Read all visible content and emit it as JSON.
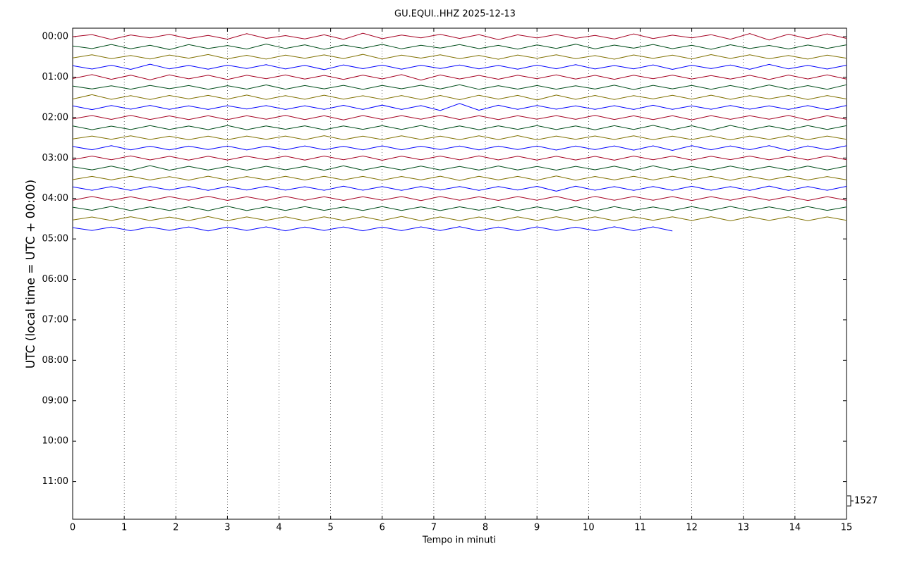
{
  "chart_data": {
    "type": "helicorder",
    "title": "GU.EQUI..HHZ 2025-12-13",
    "x_label": "Tempo in minuti",
    "y_label": "UTC (local time = UTC + 00:00)",
    "xlim": [
      0,
      15
    ],
    "xticks": [
      0,
      1,
      2,
      3,
      4,
      5,
      6,
      7,
      8,
      9,
      10,
      11,
      12,
      13,
      14,
      15
    ],
    "ylim": [
      -0.21,
      11.93
    ],
    "y_inverted": true,
    "yticks": [
      {
        "value": 0,
        "label": "00:00"
      },
      {
        "value": 1,
        "label": "01:00"
      },
      {
        "value": 2,
        "label": "02:00"
      },
      {
        "value": 3,
        "label": "03:00"
      },
      {
        "value": 4,
        "label": "04:00"
      },
      {
        "value": 5,
        "label": "05:00"
      },
      {
        "value": 6,
        "label": "06:00"
      },
      {
        "value": 7,
        "label": "07:00"
      },
      {
        "value": 8,
        "label": "08:00"
      },
      {
        "value": 9,
        "label": "09:00"
      },
      {
        "value": 10,
        "label": "10:00"
      },
      {
        "value": 11,
        "label": "11:00"
      }
    ],
    "grid": true,
    "scale_bar": 1527,
    "x": [
      0,
      0.375,
      0.75,
      1.125,
      1.5,
      1.875,
      2.25,
      2.625,
      3,
      3.375,
      3.75,
      4.125,
      4.5,
      4.875,
      5.25,
      5.625,
      6,
      6.375,
      6.75,
      7.125,
      7.5,
      7.875,
      8.25,
      8.625,
      9,
      9.375,
      9.75,
      10.125,
      10.5,
      10.875,
      11.25,
      11.625,
      12,
      12.375,
      12.75,
      13.125,
      13.5,
      13.875,
      14.25,
      14.625,
      15
    ],
    "series": [
      {
        "start": 0,
        "color": "#a50021",
        "values": [
          0,
          310,
          -420,
          260,
          -180,
          350,
          -290,
          200,
          -380,
          450,
          -260,
          170,
          -330,
          280,
          -410,
          520,
          -300,
          240,
          -190,
          360,
          -270,
          310,
          -440,
          280,
          -200,
          330,
          -250,
          190,
          -360,
          410,
          -280,
          230,
          -170,
          300,
          -390,
          460,
          -520,
          380,
          -300,
          420,
          -260
        ]
      },
      {
        "start": 0.25,
        "color": "#004d1a",
        "values": [
          120,
          -280,
          350,
          -300,
          220,
          -410,
          330,
          -260,
          190,
          -340,
          420,
          -250,
          300,
          -380,
          270,
          -220,
          360,
          -310,
          240,
          -190,
          330,
          -280,
          210,
          -350,
          290,
          -240,
          400,
          -320,
          260,
          -210,
          350,
          -290,
          230,
          -380,
          310,
          -260,
          200,
          -330,
          270,
          -240,
          300
        ]
      },
      {
        "start": 0.5,
        "color": "#807000",
        "values": [
          -150,
          330,
          -260,
          220,
          -310,
          280,
          -200,
          360,
          -290,
          240,
          -330,
          270,
          -210,
          300,
          -250,
          380,
          -310,
          260,
          -190,
          320,
          -270,
          230,
          -350,
          280,
          -220,
          310,
          -260,
          200,
          -340,
          290,
          -230,
          270,
          -300,
          350,
          -240,
          310,
          -280,
          220,
          -330,
          260,
          -200
        ]
      },
      {
        "start": 0.75,
        "color": "#0000ff",
        "values": [
          200,
          -310,
          270,
          -360,
          430,
          -290,
          240,
          -330,
          280,
          -220,
          350,
          -300,
          260,
          -390,
          320,
          -250,
          290,
          -340,
          270,
          -230,
          310,
          -280,
          240,
          -330,
          290,
          -260,
          350,
          -300,
          230,
          -280,
          320,
          -360,
          270,
          -240,
          300,
          -350,
          400,
          -290,
          250,
          -310,
          270
        ]
      },
      {
        "start": 1,
        "color": "#a50021",
        "values": [
          -220,
          380,
          -330,
          290,
          -410,
          340,
          -260,
          300,
          -370,
          280,
          -240,
          330,
          -290,
          260,
          -350,
          310,
          -270,
          380,
          -450,
          330,
          -280,
          260,
          -320,
          290,
          -240,
          350,
          -300,
          270,
          -330,
          290,
          -250,
          310,
          -280,
          240,
          -300,
          270,
          -360,
          320,
          -280,
          340,
          -300
        ]
      },
      {
        "start": 1.25,
        "color": "#004d1a",
        "values": [
          180,
          -260,
          230,
          -300,
          270,
          -220,
          260,
          -310,
          240,
          -280,
          350,
          -300,
          260,
          -240,
          290,
          -330,
          270,
          -230,
          300,
          -260,
          380,
          -320,
          240,
          -280,
          260,
          -300,
          230,
          -270,
          310,
          -350,
          290,
          -240,
          270,
          -310,
          260,
          -300,
          340,
          -280,
          250,
          -310,
          380
        ]
      },
      {
        "start": 1.5,
        "color": "#807000",
        "values": [
          -260,
          400,
          -300,
          260,
          -330,
          280,
          -240,
          300,
          -270,
          350,
          -310,
          260,
          -290,
          330,
          -280,
          240,
          -300,
          270,
          -330,
          290,
          -350,
          320,
          -280,
          300,
          -400,
          350,
          -300,
          280,
          -330,
          260,
          -240,
          310,
          -280,
          330,
          -300,
          260,
          -240,
          290,
          -320,
          270,
          -250
        ]
      },
      {
        "start": 1.75,
        "color": "#0000ff",
        "values": [
          240,
          -330,
          290,
          -260,
          310,
          -280,
          250,
          -300,
          270,
          -240,
          280,
          -310,
          260,
          -290,
          320,
          -300,
          350,
          -310,
          280,
          -450,
          600,
          -420,
          330,
          -280,
          300,
          -260,
          240,
          -290,
          270,
          -300,
          330,
          -280,
          250,
          -270,
          300,
          -260,
          240,
          -310,
          280,
          -330,
          290
        ]
      },
      {
        "start": 2,
        "color": "#a50021",
        "values": [
          -200,
          310,
          -280,
          340,
          -290,
          250,
          -300,
          270,
          -320,
          290,
          -260,
          330,
          -300,
          270,
          -350,
          310,
          -280,
          300,
          -260,
          330,
          -290,
          270,
          -310,
          280,
          -250,
          300,
          -270,
          330,
          -290,
          260,
          -310,
          280,
          -340,
          300,
          -270,
          290,
          -250,
          320,
          -360,
          290,
          -260
        ]
      },
      {
        "start": 2.25,
        "color": "#004d1a",
        "values": [
          260,
          -300,
          240,
          -280,
          310,
          -270,
          250,
          -290,
          330,
          -300,
          260,
          -240,
          280,
          -310,
          270,
          -250,
          300,
          -270,
          330,
          -290,
          260,
          -300,
          280,
          -250,
          310,
          -280,
          260,
          -330,
          300,
          -270,
          350,
          -310,
          290,
          -380,
          340,
          -300,
          270,
          -290,
          310,
          -260,
          300
        ]
      },
      {
        "start": 2.5,
        "color": "#807000",
        "values": [
          -180,
          270,
          -240,
          300,
          -260,
          230,
          -280,
          250,
          -300,
          270,
          -240,
          260,
          -290,
          320,
          -280,
          250,
          -270,
          300,
          -260,
          240,
          -280,
          310,
          -270,
          330,
          -300,
          260,
          -240,
          280,
          -260,
          300,
          -280,
          250,
          -270,
          290,
          -310,
          270,
          -250,
          300,
          -280,
          260,
          -240
        ]
      },
      {
        "start": 2.75,
        "color": "#0000ff",
        "values": [
          220,
          -280,
          330,
          -290,
          260,
          -300,
          270,
          -250,
          290,
          -310,
          260,
          -280,
          300,
          -270,
          250,
          -290,
          310,
          -280,
          260,
          -240,
          280,
          -300,
          270,
          -250,
          290,
          -320,
          280,
          -260,
          300,
          -340,
          310,
          -380,
          330,
          -280,
          300,
          -270,
          330,
          -380,
          300,
          -270,
          320
        ]
      },
      {
        "start": 3,
        "color": "#a50021",
        "values": [
          -240,
          300,
          -270,
          330,
          -290,
          260,
          -310,
          280,
          -300,
          270,
          -250,
          290,
          -320,
          300,
          -270,
          310,
          -340,
          290,
          -260,
          300,
          -280,
          330,
          -290,
          270,
          -310,
          280,
          -300,
          260,
          -330,
          300,
          -270,
          290,
          -310,
          270,
          -250,
          300,
          -280,
          260,
          -290,
          310,
          -270
        ]
      },
      {
        "start": 3.25,
        "color": "#004d1a",
        "values": [
          200,
          -260,
          300,
          -330,
          380,
          -310,
          270,
          -290,
          260,
          -300,
          280,
          -250,
          270,
          -310,
          350,
          -300,
          260,
          -280,
          300,
          -270,
          250,
          -290,
          320,
          -280,
          260,
          -300,
          270,
          -250,
          290,
          -320,
          350,
          -290,
          260,
          -280,
          300,
          -270,
          250,
          -290,
          310,
          -280,
          300
        ]
      },
      {
        "start": 3.5,
        "color": "#807000",
        "values": [
          -210,
          280,
          -250,
          300,
          -270,
          240,
          -290,
          310,
          -280,
          260,
          -240,
          290,
          -270,
          300,
          -260,
          280,
          -300,
          270,
          -250,
          310,
          -330,
          290,
          -260,
          280,
          -300,
          340,
          -300,
          270,
          -250,
          290,
          -270,
          300,
          -260,
          280,
          -310,
          270,
          -250,
          290,
          -270,
          260,
          -240
        ]
      },
      {
        "start": 3.75,
        "color": "#0000ff",
        "values": [
          230,
          -290,
          260,
          -300,
          270,
          -250,
          290,
          -310,
          280,
          -260,
          300,
          -270,
          250,
          -290,
          320,
          -280,
          260,
          -300,
          270,
          -250,
          280,
          -300,
          270,
          -260,
          300,
          -420,
          330,
          -280,
          260,
          -300,
          270,
          -290,
          310,
          -280,
          260,
          -300,
          350,
          -300,
          270,
          -290,
          300
        ]
      },
      {
        "start": 4,
        "color": "#a50021",
        "values": [
          -260,
          300,
          -280,
          260,
          -310,
          290,
          -270,
          330,
          -300,
          270,
          -290,
          310,
          -280,
          260,
          -300,
          270,
          -250,
          290,
          -320,
          300,
          -280,
          260,
          -300,
          290,
          -270,
          310,
          -360,
          320,
          -280,
          300,
          -260,
          290,
          -310,
          280,
          -260,
          300,
          -270,
          290,
          -310,
          280,
          -260
        ]
      },
      {
        "start": 4.25,
        "color": "#004d1a",
        "values": [
          210,
          -260,
          330,
          -300,
          260,
          -290,
          270,
          -310,
          350,
          -300,
          260,
          -280,
          300,
          -270,
          250,
          -290,
          310,
          -280,
          260,
          -300,
          270,
          -250,
          280,
          -300,
          260,
          -280,
          310,
          -360,
          300,
          -270,
          250,
          -280,
          300,
          -270,
          330,
          -290,
          260,
          -280,
          300,
          -270,
          250
        ]
      },
      {
        "start": 4.5,
        "color": "#807000",
        "values": [
          -190,
          260,
          -280,
          300,
          -270,
          250,
          -290,
          320,
          -300,
          270,
          -250,
          290,
          -310,
          280,
          -260,
          300,
          -280,
          330,
          -300,
          270,
          -290,
          260,
          -300,
          280,
          -260,
          300,
          -270,
          290,
          -310,
          270,
          -250,
          290,
          -270,
          300,
          -330,
          290,
          -260,
          280,
          -300,
          270,
          -250
        ]
      },
      {
        "start": 4.75,
        "color": "#0000ff",
        "values": [
          180,
          -250,
          270,
          -290,
          260,
          -240,
          280,
          -310,
          270,
          -250,
          290,
          -300,
          270,
          -250,
          280,
          -300,
          260,
          -280,
          300,
          -270,
          330,
          -290,
          260,
          -280,
          300,
          -270,
          250,
          -290,
          310,
          -280,
          300,
          -330,
          null,
          null,
          null,
          null,
          null,
          null,
          null,
          null,
          null
        ]
      }
    ]
  }
}
